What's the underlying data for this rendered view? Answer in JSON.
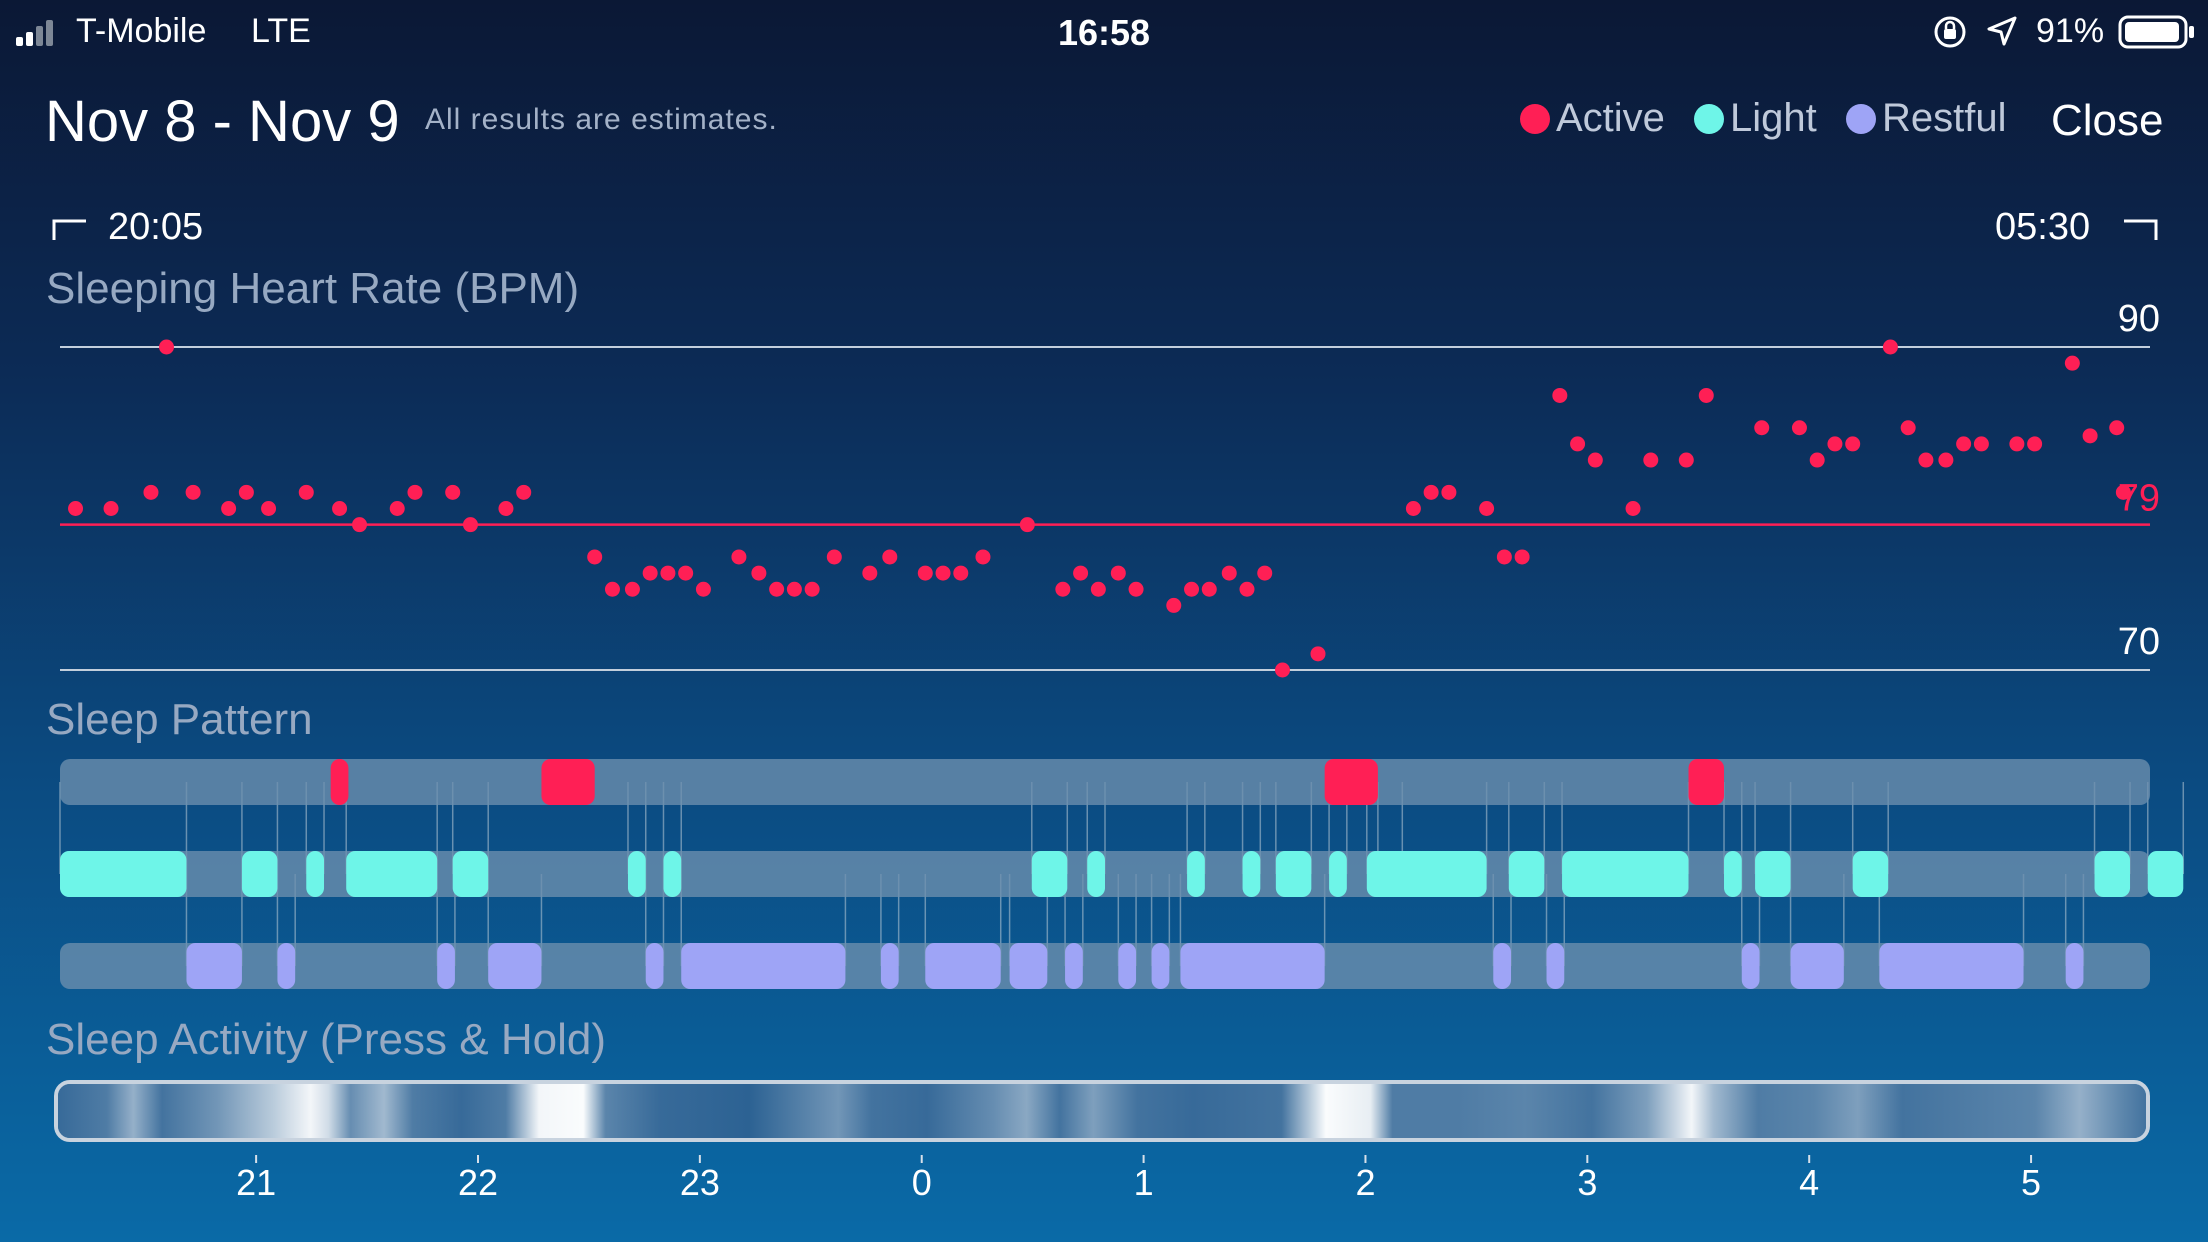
{
  "status_bar": {
    "carrier": "T-Mobile",
    "network": "LTE",
    "time": "16:58",
    "battery": "91%",
    "icons": [
      "signal-icon",
      "orientation-lock-icon",
      "location-icon",
      "battery-icon"
    ]
  },
  "header": {
    "date_range": "Nov 8 - Nov 9",
    "note": "All results are estimates.",
    "close_label": "Close"
  },
  "legend": [
    {
      "label": "Active",
      "color": "#ff1f55"
    },
    {
      "label": "Light",
      "color": "#6ef5e8"
    },
    {
      "label": "Restful",
      "color": "#9ea4f6"
    }
  ],
  "time_range": {
    "start": "20:05",
    "end": "05:30"
  },
  "sections": {
    "heart_rate": "Sleeping Heart Rate (BPM)",
    "sleep_pattern": "Sleep Pattern",
    "sleep_activity": "Sleep Activity (Press & Hold)"
  },
  "chart_data": [
    {
      "type": "scatter",
      "title": "Sleeping Heart Rate (BPM)",
      "x_unit": "hours after 20:00",
      "xlim": [
        0.08,
        9.5
      ],
      "ylim": [
        70,
        90
      ],
      "y_ticks": [
        {
          "value": 90,
          "label": "90"
        },
        {
          "value": 70,
          "label": "70"
        }
      ],
      "average": {
        "value": 79,
        "label": "79"
      },
      "points": [
        [
          0.15,
          80
        ],
        [
          0.31,
          80
        ],
        [
          0.49,
          81
        ],
        [
          0.56,
          90
        ],
        [
          0.68,
          81
        ],
        [
          0.84,
          80
        ],
        [
          0.92,
          81
        ],
        [
          1.02,
          80
        ],
        [
          1.19,
          81
        ],
        [
          1.34,
          80
        ],
        [
          1.43,
          79
        ],
        [
          1.6,
          80
        ],
        [
          1.68,
          81
        ],
        [
          1.85,
          81
        ],
        [
          1.93,
          79
        ],
        [
          2.09,
          80
        ],
        [
          2.17,
          81
        ],
        [
          2.49,
          77
        ],
        [
          2.57,
          75
        ],
        [
          2.66,
          75
        ],
        [
          2.74,
          76
        ],
        [
          2.82,
          76
        ],
        [
          2.9,
          76
        ],
        [
          2.98,
          75
        ],
        [
          3.14,
          77
        ],
        [
          3.23,
          76
        ],
        [
          3.31,
          75
        ],
        [
          3.39,
          75
        ],
        [
          3.47,
          75
        ],
        [
          3.57,
          77
        ],
        [
          3.73,
          76
        ],
        [
          3.82,
          77
        ],
        [
          3.98,
          76
        ],
        [
          4.06,
          76
        ],
        [
          4.14,
          76
        ],
        [
          4.24,
          77
        ],
        [
          4.44,
          79
        ],
        [
          4.6,
          75
        ],
        [
          4.68,
          76
        ],
        [
          4.76,
          75
        ],
        [
          4.85,
          76
        ],
        [
          4.93,
          75
        ],
        [
          5.1,
          74
        ],
        [
          5.18,
          75
        ],
        [
          5.26,
          75
        ],
        [
          5.35,
          76
        ],
        [
          5.43,
          75
        ],
        [
          5.51,
          76
        ],
        [
          5.59,
          70
        ],
        [
          5.75,
          71
        ],
        [
          6.18,
          80
        ],
        [
          6.26,
          81
        ],
        [
          6.34,
          81
        ],
        [
          6.51,
          80
        ],
        [
          6.59,
          77
        ],
        [
          6.67,
          77
        ],
        [
          6.84,
          87
        ],
        [
          6.92,
          84
        ],
        [
          7.0,
          83
        ],
        [
          7.17,
          80
        ],
        [
          7.25,
          83
        ],
        [
          7.41,
          83
        ],
        [
          7.5,
          87
        ],
        [
          7.75,
          85
        ],
        [
          7.92,
          85
        ],
        [
          8.0,
          83
        ],
        [
          8.08,
          84
        ],
        [
          8.16,
          84
        ],
        [
          8.33,
          90
        ],
        [
          8.41,
          85
        ],
        [
          8.49,
          83
        ],
        [
          8.58,
          83
        ],
        [
          8.66,
          84
        ],
        [
          8.74,
          84
        ],
        [
          8.9,
          84
        ],
        [
          8.98,
          84
        ],
        [
          9.15,
          89
        ],
        [
          9.23,
          84.5
        ],
        [
          9.35,
          85
        ],
        [
          9.38,
          81
        ]
      ]
    },
    {
      "type": "timeline",
      "title": "Sleep Pattern",
      "x_unit": "hours after 20:00",
      "rows": [
        {
          "name": "Active",
          "segments": [
            [
              1.3,
              1.38
            ],
            [
              2.25,
              2.49
            ],
            [
              5.78,
              6.02
            ],
            [
              7.42,
              7.58
            ]
          ]
        },
        {
          "name": "Light",
          "segments": [
            [
              0.08,
              0.65
            ],
            [
              0.9,
              1.06
            ],
            [
              1.19,
              1.27
            ],
            [
              1.37,
              1.78
            ],
            [
              1.85,
              2.01
            ],
            [
              2.64,
              2.72
            ],
            [
              2.8,
              2.88
            ],
            [
              4.46,
              4.62
            ],
            [
              4.71,
              4.79
            ],
            [
              5.16,
              5.24
            ],
            [
              5.41,
              5.49
            ],
            [
              5.56,
              5.72
            ],
            [
              5.8,
              5.88
            ],
            [
              5.97,
              6.13
            ],
            [
              6.02,
              6.51
            ],
            [
              6.61,
              6.77
            ],
            [
              6.85,
              7.42
            ],
            [
              7.58,
              7.66
            ],
            [
              7.72,
              7.88
            ],
            [
              8.16,
              8.32
            ],
            [
              9.25,
              9.41
            ],
            [
              9.49,
              9.65
            ]
          ]
        },
        {
          "name": "Restful",
          "segments": [
            [
              0.65,
              0.9
            ],
            [
              1.06,
              1.14
            ],
            [
              1.78,
              1.86
            ],
            [
              2.01,
              2.25
            ],
            [
              2.72,
              2.8
            ],
            [
              2.88,
              3.62
            ],
            [
              3.78,
              3.86
            ],
            [
              3.98,
              4.32
            ],
            [
              4.36,
              4.53
            ],
            [
              4.61,
              4.69
            ],
            [
              4.85,
              4.93
            ],
            [
              5.0,
              5.08
            ],
            [
              5.13,
              5.78
            ],
            [
              6.54,
              6.62
            ],
            [
              6.78,
              6.86
            ],
            [
              7.66,
              7.74
            ],
            [
              7.88,
              8.12
            ],
            [
              8.28,
              8.93
            ],
            [
              9.12,
              9.2
            ]
          ]
        }
      ]
    },
    {
      "type": "heatmap",
      "title": "Sleep Activity (Press & Hold)",
      "x_unit": "hours after 20:00",
      "intensity": [
        [
          0.08,
          0.15
        ],
        [
          0.3,
          0.25
        ],
        [
          0.42,
          0.55
        ],
        [
          0.55,
          0.2
        ],
        [
          0.8,
          0.4
        ],
        [
          1.05,
          0.7
        ],
        [
          1.22,
          0.95
        ],
        [
          1.3,
          0.8
        ],
        [
          1.4,
          0.35
        ],
        [
          1.55,
          0.6
        ],
        [
          1.68,
          0.25
        ],
        [
          1.9,
          0.15
        ],
        [
          2.1,
          0.25
        ],
        [
          2.25,
          0.95
        ],
        [
          2.45,
          0.98
        ],
        [
          2.55,
          0.3
        ],
        [
          2.8,
          0.15
        ],
        [
          3.2,
          0.1
        ],
        [
          3.6,
          0.4
        ],
        [
          3.75,
          0.2
        ],
        [
          4.0,
          0.15
        ],
        [
          4.3,
          0.35
        ],
        [
          4.45,
          0.5
        ],
        [
          4.6,
          0.2
        ],
        [
          4.75,
          0.45
        ],
        [
          4.95,
          0.2
        ],
        [
          5.2,
          0.15
        ],
        [
          5.6,
          0.2
        ],
        [
          5.8,
          0.98
        ],
        [
          6.0,
          0.9
        ],
        [
          6.1,
          0.25
        ],
        [
          6.4,
          0.25
        ],
        [
          6.7,
          0.3
        ],
        [
          7.0,
          0.2
        ],
        [
          7.25,
          0.45
        ],
        [
          7.45,
          0.95
        ],
        [
          7.55,
          0.6
        ],
        [
          7.75,
          0.25
        ],
        [
          8.0,
          0.3
        ],
        [
          8.2,
          0.45
        ],
        [
          8.4,
          0.2
        ],
        [
          8.7,
          0.25
        ],
        [
          9.0,
          0.3
        ],
        [
          9.2,
          0.55
        ],
        [
          9.4,
          0.3
        ],
        [
          9.5,
          0.2
        ]
      ]
    }
  ],
  "x_axis": {
    "ticks": [
      {
        "label": "21",
        "value": 1
      },
      {
        "label": "22",
        "value": 2
      },
      {
        "label": "23",
        "value": 3
      },
      {
        "label": "0",
        "value": 4
      },
      {
        "label": "1",
        "value": 5
      },
      {
        "label": "2",
        "value": 6
      },
      {
        "label": "3",
        "value": 7
      },
      {
        "label": "4",
        "value": 8
      },
      {
        "label": "5",
        "value": 9
      }
    ]
  }
}
